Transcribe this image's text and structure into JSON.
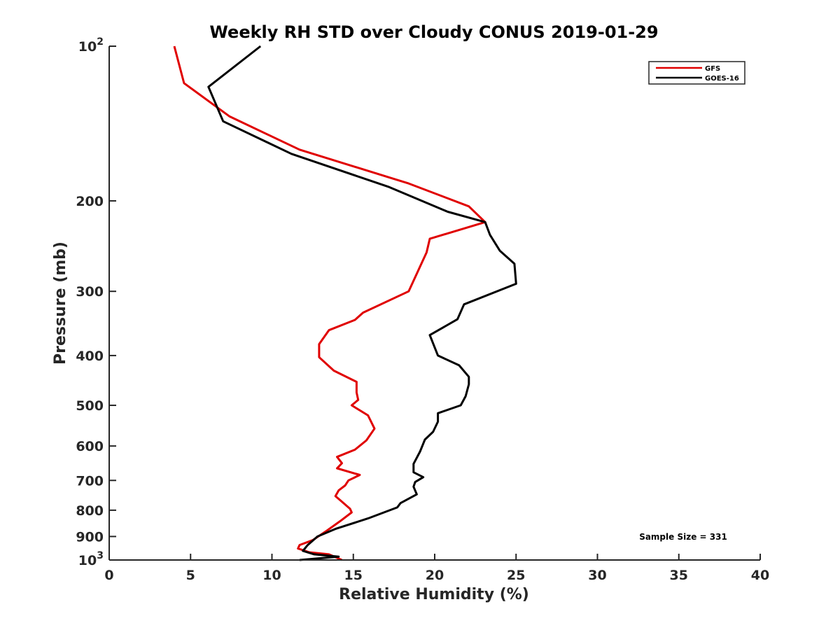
{
  "chart_data": {
    "type": "line",
    "title": "Weekly RH STD over Cloudy CONUS 2019-01-29",
    "xlabel": "Relative Humidity (%)",
    "ylabel": "Pressure (mb)",
    "xlim": [
      0,
      40
    ],
    "ylim": [
      100,
      1000
    ],
    "y_scale": "log",
    "y_reversed": true,
    "grid": false,
    "legend_position": "top-right",
    "xticks": [
      0,
      5,
      10,
      15,
      20,
      25,
      30,
      35,
      40
    ],
    "xtick_labels": [
      "0",
      "5",
      "10",
      "15",
      "20",
      "25",
      "30",
      "35",
      "40"
    ],
    "yticks": [
      100,
      200,
      300,
      400,
      500,
      600,
      700,
      800,
      900,
      1000
    ],
    "ytick_labels": [
      {
        "text": "10",
        "sup": "2"
      },
      {
        "text": "200",
        "sup": ""
      },
      {
        "text": "300",
        "sup": ""
      },
      {
        "text": "400",
        "sup": ""
      },
      {
        "text": "500",
        "sup": ""
      },
      {
        "text": "600",
        "sup": ""
      },
      {
        "text": "700",
        "sup": ""
      },
      {
        "text": "800",
        "sup": ""
      },
      {
        "text": "900",
        "sup": ""
      },
      {
        "text": "10",
        "sup": "3"
      }
    ],
    "annotation": "Sample Size = 331",
    "series": [
      {
        "name": "GFS",
        "color": "#e00000",
        "points": [
          [
            4.0,
            100
          ],
          [
            4.6,
            118
          ],
          [
            7.4,
            137
          ],
          [
            11.7,
            159
          ],
          [
            18.4,
            185
          ],
          [
            22.1,
            205
          ],
          [
            23.1,
            220
          ],
          [
            19.7,
            237
          ],
          [
            19.5,
            252
          ],
          [
            18.4,
            300
          ],
          [
            15.6,
            330
          ],
          [
            15.1,
            341
          ],
          [
            13.5,
            357
          ],
          [
            12.9,
            380
          ],
          [
            12.9,
            403
          ],
          [
            13.8,
            428
          ],
          [
            15.2,
            450
          ],
          [
            15.2,
            472
          ],
          [
            15.3,
            488
          ],
          [
            14.9,
            500
          ],
          [
            15.9,
            523
          ],
          [
            16.3,
            555
          ],
          [
            15.8,
            585
          ],
          [
            15.1,
            610
          ],
          [
            14.0,
            630
          ],
          [
            14.3,
            648
          ],
          [
            14.0,
            663
          ],
          [
            15.4,
            683
          ],
          [
            14.7,
            700
          ],
          [
            14.5,
            716
          ],
          [
            14.1,
            732
          ],
          [
            13.9,
            751
          ],
          [
            14.3,
            770
          ],
          [
            14.8,
            795
          ],
          [
            14.9,
            808
          ],
          [
            14.2,
            840
          ],
          [
            13.3,
            880
          ],
          [
            12.5,
            915
          ],
          [
            11.7,
            935
          ],
          [
            11.6,
            950
          ],
          [
            12.3,
            966
          ],
          [
            13.5,
            975
          ],
          [
            14.3,
            1000
          ]
        ]
      },
      {
        "name": "GOES-16",
        "color": "#000000",
        "points": [
          [
            9.3,
            100
          ],
          [
            6.1,
            120
          ],
          [
            7.0,
            140
          ],
          [
            11.2,
            162
          ],
          [
            17.2,
            188
          ],
          [
            20.8,
            210
          ],
          [
            23.1,
            220
          ],
          [
            23.4,
            233
          ],
          [
            24.0,
            250
          ],
          [
            24.9,
            265
          ],
          [
            25.0,
            290
          ],
          [
            21.8,
            318
          ],
          [
            21.4,
            340
          ],
          [
            19.7,
            365
          ],
          [
            20.2,
            400
          ],
          [
            21.5,
            418
          ],
          [
            22.1,
            440
          ],
          [
            22.1,
            455
          ],
          [
            21.9,
            480
          ],
          [
            21.6,
            500
          ],
          [
            20.2,
            518
          ],
          [
            20.2,
            538
          ],
          [
            19.9,
            563
          ],
          [
            19.4,
            583
          ],
          [
            19.1,
            615
          ],
          [
            18.7,
            650
          ],
          [
            18.7,
            675
          ],
          [
            19.3,
            690
          ],
          [
            18.8,
            705
          ],
          [
            18.7,
            720
          ],
          [
            18.9,
            745
          ],
          [
            17.9,
            775
          ],
          [
            17.7,
            790
          ],
          [
            15.9,
            830
          ],
          [
            13.9,
            870
          ],
          [
            12.8,
            900
          ],
          [
            12.2,
            935
          ],
          [
            11.9,
            960
          ],
          [
            12.6,
            975
          ],
          [
            14.1,
            985
          ],
          [
            11.7,
            1000
          ]
        ]
      }
    ]
  }
}
